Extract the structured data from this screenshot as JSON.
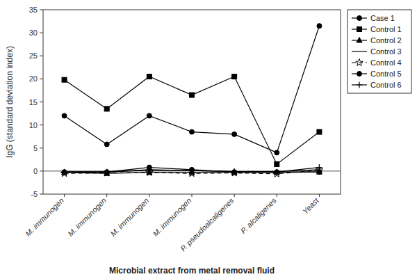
{
  "chart_data": {
    "type": "line",
    "categories": [
      "M. immunogen",
      "M. immunogen",
      "M. immunogen",
      "M. immunogen",
      "P. pseudoalcaligenes",
      "P. alcaligenes",
      "Yeast"
    ],
    "series": [
      {
        "name": "Case 1",
        "color": "#000000",
        "marker": "circle",
        "line_style": "solid",
        "values": [
          12.0,
          5.8,
          12.0,
          8.5,
          8.0,
          4.0,
          31.5
        ]
      },
      {
        "name": "Control 1",
        "color": "#000000",
        "marker": "square",
        "line_style": "solid",
        "values": [
          19.8,
          13.5,
          20.5,
          16.5,
          20.5,
          1.5,
          8.5
        ]
      },
      {
        "name": "Control 2",
        "color": "#000000",
        "marker": "triangle",
        "line_style": "solid",
        "values": [
          -0.3,
          -0.5,
          -0.3,
          -0.3,
          -0.3,
          -0.3,
          -0.2
        ]
      },
      {
        "name": "Control 3",
        "color": "#000000",
        "marker": "none",
        "line_style": "solid",
        "values": [
          -0.2,
          -0.2,
          0.2,
          0.1,
          -0.1,
          -0.1,
          0.3
        ]
      },
      {
        "name": "Control 4",
        "color": "#000000",
        "marker": "star",
        "line_style": "dashed",
        "values": [
          -0.5,
          -0.4,
          -0.3,
          -0.5,
          -0.4,
          -0.6,
          0.2
        ]
      },
      {
        "name": "Control 5",
        "color": "#000000",
        "marker": "circle",
        "line_style": "solid",
        "values": [
          -0.2,
          -0.2,
          0.8,
          0.3,
          -0.2,
          -0.2,
          -0.2
        ]
      },
      {
        "name": "Control 6",
        "color": "#000000",
        "marker": "plus",
        "line_style": "solid",
        "values": [
          -0.2,
          -0.2,
          0.3,
          0.1,
          -0.1,
          -0.2,
          0.8
        ]
      }
    ],
    "xlabel": "Microbial extract from metal removal fluid",
    "ylabel": "IgG (standard deviation index)",
    "ylim": [
      -5,
      35
    ],
    "yticks": [
      -5,
      0,
      5,
      10,
      15,
      20,
      25,
      30,
      35
    ],
    "grid": false,
    "legend": "upper right"
  }
}
